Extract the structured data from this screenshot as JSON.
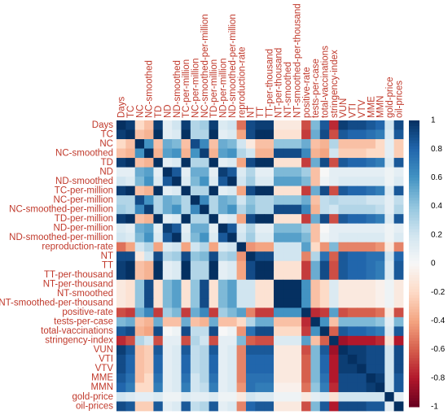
{
  "chart_data": {
    "type": "heatmap",
    "title": "",
    "variables": [
      "Days",
      "TC",
      "NC",
      "NC-smoothed",
      "TD",
      "ND",
      "ND-smoothed",
      "TC-per-million",
      "NC-per-million",
      "NC-smoothed-per-million",
      "TD-per-million",
      "ND-per-million",
      "ND-smoothed-per-million",
      "reproduction-rate",
      "NT",
      "TT",
      "TT-per-thousand",
      "NT-per-thousand",
      "NT-smoothed",
      "NT-smoothed-per-thousand",
      "positive-rate",
      "tests-per-case",
      "total-vaccinations",
      "stringency-index",
      "VUN",
      "VTI",
      "VTV",
      "MME",
      "MMN",
      "gold-price",
      "oil-prices"
    ],
    "matrix": [
      [
        1,
        0.95,
        -0.2,
        -0.3,
        0.95,
        0.1,
        0.2,
        0.95,
        0.3,
        0.35,
        0.95,
        0.15,
        0.2,
        -0.55,
        0.9,
        0.95,
        0.95,
        -0.1,
        -0.1,
        -0.1,
        -0.65,
        0.45,
        0.85,
        -0.75,
        0.95,
        0.9,
        0.9,
        0.85,
        0.8,
        0.2,
        0.9
      ],
      [
        0.95,
        1,
        -0.3,
        -0.35,
        1,
        0.1,
        0.15,
        1,
        0.3,
        0.3,
        1,
        0.1,
        0.15,
        -0.4,
        0.9,
        1,
        1,
        -0.15,
        -0.15,
        -0.15,
        -0.7,
        0.5,
        0.9,
        -0.65,
        0.85,
        0.8,
        0.8,
        0.75,
        0.7,
        0.15,
        0.85
      ],
      [
        -0.2,
        -0.3,
        1,
        0.6,
        -0.3,
        0.5,
        0.45,
        -0.3,
        0.9,
        0.65,
        -0.3,
        0.5,
        0.45,
        0.2,
        -0.1,
        -0.3,
        -0.3,
        0.4,
        0.4,
        0.4,
        0.5,
        -0.3,
        -0.35,
        0.3,
        -0.3,
        -0.3,
        -0.3,
        -0.3,
        -0.2,
        0.1,
        -0.25
      ],
      [
        -0.3,
        -0.35,
        0.6,
        1,
        -0.35,
        0.55,
        0.6,
        -0.35,
        0.6,
        0.95,
        -0.35,
        0.55,
        0.6,
        0.3,
        0.2,
        -0.35,
        -0.35,
        0.9,
        0.9,
        0.9,
        0.65,
        -0.35,
        -0.4,
        0.2,
        -0.25,
        -0.25,
        -0.25,
        -0.2,
        -0.2,
        0.1,
        -0.25
      ],
      [
        0.95,
        1,
        -0.3,
        -0.35,
        1,
        0.1,
        0.15,
        1,
        0.3,
        0.3,
        1,
        0.1,
        0.15,
        -0.4,
        0.9,
        1,
        1,
        -0.15,
        -0.15,
        -0.15,
        -0.7,
        0.5,
        0.9,
        -0.65,
        0.85,
        0.8,
        0.8,
        0.75,
        0.7,
        0.15,
        0.85
      ],
      [
        0.1,
        0.1,
        0.5,
        0.55,
        0.1,
        1,
        0.85,
        0.1,
        0.5,
        0.5,
        0.1,
        0.95,
        0.85,
        0.15,
        0.3,
        0.1,
        0.1,
        0.45,
        0.45,
        0.45,
        0.35,
        -0.3,
        0.0,
        0.1,
        0.1,
        0.1,
        0.1,
        0.1,
        0.1,
        0.05,
        0.1
      ],
      [
        0.2,
        0.15,
        0.45,
        0.6,
        0.15,
        0.85,
        1,
        0.15,
        0.45,
        0.6,
        0.15,
        0.85,
        1,
        0.2,
        0.35,
        0.15,
        0.15,
        0.55,
        0.55,
        0.55,
        0.45,
        -0.3,
        0.05,
        0.1,
        0.15,
        0.15,
        0.15,
        0.15,
        0.15,
        0.05,
        0.15
      ],
      [
        0.95,
        1,
        -0.3,
        -0.35,
        1,
        0.1,
        0.15,
        1,
        0.3,
        0.3,
        1,
        0.1,
        0.15,
        -0.4,
        0.9,
        1,
        1,
        -0.15,
        -0.15,
        -0.15,
        -0.7,
        0.5,
        0.9,
        -0.65,
        0.85,
        0.8,
        0.8,
        0.75,
        0.7,
        0.15,
        0.85
      ],
      [
        0.3,
        0.3,
        0.9,
        0.6,
        0.3,
        0.5,
        0.45,
        0.3,
        1,
        0.65,
        0.3,
        0.5,
        0.45,
        0.2,
        0.4,
        0.3,
        0.3,
        0.4,
        0.4,
        0.4,
        0.5,
        -0.3,
        0.25,
        0.3,
        0.25,
        0.25,
        0.25,
        0.2,
        0.2,
        0.1,
        0.25
      ],
      [
        0.35,
        0.3,
        0.65,
        0.95,
        0.3,
        0.5,
        0.6,
        0.3,
        0.65,
        1,
        0.3,
        0.5,
        0.6,
        0.3,
        0.45,
        0.3,
        0.3,
        0.9,
        0.9,
        0.9,
        0.65,
        -0.35,
        0.25,
        0.2,
        0.3,
        0.3,
        0.3,
        0.3,
        0.25,
        0.1,
        0.3
      ],
      [
        0.95,
        1,
        -0.3,
        -0.35,
        1,
        0.1,
        0.15,
        1,
        0.3,
        0.3,
        1,
        0.1,
        0.15,
        -0.4,
        0.9,
        1,
        1,
        -0.15,
        -0.15,
        -0.15,
        -0.7,
        0.5,
        0.9,
        -0.65,
        0.85,
        0.8,
        0.8,
        0.75,
        0.7,
        0.15,
        0.85
      ],
      [
        0.15,
        0.1,
        0.5,
        0.55,
        0.1,
        0.95,
        0.85,
        0.1,
        0.5,
        0.5,
        0.1,
        1,
        0.85,
        0.15,
        0.3,
        0.1,
        0.1,
        0.45,
        0.45,
        0.45,
        0.35,
        -0.3,
        0.0,
        0.1,
        0.1,
        0.1,
        0.1,
        0.1,
        0.1,
        0.05,
        0.1
      ],
      [
        0.2,
        0.15,
        0.45,
        0.6,
        0.15,
        0.85,
        1,
        0.15,
        0.45,
        0.6,
        0.15,
        0.85,
        1,
        0.2,
        0.35,
        0.15,
        0.15,
        0.55,
        0.55,
        0.55,
        0.45,
        -0.3,
        0.05,
        0.1,
        0.15,
        0.15,
        0.15,
        0.15,
        0.15,
        0.05,
        0.15
      ],
      [
        -0.55,
        -0.4,
        0.2,
        0.3,
        -0.4,
        0.15,
        0.2,
        -0.4,
        0.2,
        0.3,
        -0.4,
        0.15,
        0.2,
        1,
        -0.45,
        -0.4,
        -0.4,
        0.2,
        0.2,
        0.2,
        0.55,
        -0.2,
        -0.45,
        0.45,
        -0.5,
        -0.5,
        -0.5,
        -0.5,
        -0.45,
        -0.1,
        -0.5
      ],
      [
        0.9,
        0.9,
        -0.1,
        0.2,
        0.9,
        0.3,
        0.35,
        0.9,
        0.4,
        0.45,
        0.9,
        0.3,
        0.35,
        -0.45,
        1,
        0.9,
        0.9,
        0.2,
        0.2,
        0.2,
        -0.5,
        0.3,
        0.75,
        -0.6,
        0.85,
        0.8,
        0.8,
        0.75,
        0.75,
        0.2,
        0.8
      ],
      [
        0.95,
        1,
        -0.3,
        -0.35,
        1,
        0.1,
        0.15,
        1,
        0.3,
        0.3,
        1,
        0.1,
        0.15,
        -0.4,
        0.9,
        1,
        1,
        -0.15,
        -0.15,
        -0.15,
        -0.7,
        0.5,
        0.9,
        -0.65,
        0.85,
        0.8,
        0.8,
        0.75,
        0.7,
        0.15,
        0.85
      ],
      [
        0.95,
        1,
        -0.3,
        -0.35,
        1,
        0.1,
        0.15,
        1,
        0.3,
        0.3,
        1,
        0.1,
        0.15,
        -0.4,
        0.9,
        1,
        1,
        -0.15,
        -0.15,
        -0.15,
        -0.7,
        0.5,
        0.9,
        -0.65,
        0.85,
        0.8,
        0.8,
        0.75,
        0.7,
        0.15,
        0.85
      ],
      [
        -0.1,
        -0.15,
        0.4,
        0.9,
        -0.15,
        0.45,
        0.55,
        -0.15,
        0.4,
        0.9,
        -0.15,
        0.45,
        0.55,
        0.2,
        0.2,
        -0.15,
        -0.15,
        1,
        1,
        1,
        0.6,
        -0.3,
        -0.2,
        0.15,
        -0.1,
        -0.1,
        -0.1,
        -0.1,
        -0.05,
        0.05,
        -0.1
      ],
      [
        -0.1,
        -0.15,
        0.4,
        0.9,
        -0.15,
        0.45,
        0.55,
        -0.15,
        0.4,
        0.9,
        -0.15,
        0.45,
        0.55,
        0.2,
        0.2,
        -0.15,
        -0.15,
        1,
        1,
        1,
        0.6,
        -0.3,
        -0.2,
        0.15,
        -0.1,
        -0.1,
        -0.1,
        -0.1,
        -0.05,
        0.05,
        -0.1
      ],
      [
        -0.1,
        -0.15,
        0.4,
        0.9,
        -0.15,
        0.45,
        0.55,
        -0.15,
        0.4,
        0.9,
        -0.15,
        0.45,
        0.55,
        0.2,
        0.2,
        -0.15,
        -0.15,
        1,
        1,
        1,
        0.6,
        -0.3,
        -0.2,
        0.15,
        -0.1,
        -0.1,
        -0.1,
        -0.1,
        -0.05,
        0.05,
        -0.1
      ],
      [
        -0.65,
        -0.7,
        0.5,
        0.65,
        -0.7,
        0.35,
        0.45,
        -0.7,
        0.5,
        0.65,
        -0.7,
        0.35,
        0.45,
        0.55,
        -0.5,
        -0.7,
        -0.7,
        0.6,
        0.6,
        0.6,
        1,
        -0.75,
        -0.7,
        0.55,
        -0.65,
        -0.6,
        -0.6,
        -0.6,
        -0.55,
        -0.1,
        -0.65
      ],
      [
        0.45,
        0.5,
        -0.3,
        -0.35,
        0.5,
        -0.3,
        -0.3,
        0.5,
        -0.3,
        -0.35,
        0.5,
        -0.3,
        -0.3,
        -0.2,
        0.3,
        0.5,
        0.5,
        -0.3,
        -0.3,
        -0.3,
        -0.75,
        1,
        0.6,
        -0.3,
        0.45,
        0.45,
        0.45,
        0.45,
        0.4,
        0.1,
        0.45
      ],
      [
        0.85,
        0.9,
        -0.35,
        -0.4,
        0.9,
        0.0,
        0.05,
        0.9,
        0.25,
        0.25,
        0.9,
        0.0,
        0.05,
        -0.45,
        0.75,
        0.9,
        0.9,
        -0.2,
        -0.2,
        -0.2,
        -0.7,
        0.6,
        1,
        -0.6,
        0.85,
        0.8,
        0.8,
        0.75,
        0.7,
        0.15,
        0.85
      ],
      [
        -0.75,
        -0.65,
        0.3,
        0.2,
        -0.65,
        0.1,
        0.1,
        -0.65,
        0.3,
        0.2,
        -0.65,
        0.1,
        0.1,
        0.45,
        -0.6,
        -0.65,
        -0.65,
        0.15,
        0.15,
        0.15,
        0.55,
        -0.3,
        -0.6,
        1,
        -0.85,
        -0.8,
        -0.8,
        -0.8,
        -0.75,
        -0.15,
        -0.8
      ],
      [
        0.95,
        0.85,
        -0.3,
        -0.25,
        0.85,
        0.1,
        0.15,
        0.85,
        0.25,
        0.3,
        0.85,
        0.1,
        0.15,
        -0.5,
        0.85,
        0.85,
        0.85,
        -0.1,
        -0.1,
        -0.1,
        -0.65,
        0.45,
        0.85,
        -0.85,
        1,
        0.95,
        0.95,
        0.9,
        0.9,
        0.2,
        0.9
      ],
      [
        0.9,
        0.8,
        -0.3,
        -0.25,
        0.8,
        0.1,
        0.15,
        0.8,
        0.25,
        0.3,
        0.8,
        0.1,
        0.15,
        -0.5,
        0.8,
        0.8,
        0.8,
        -0.1,
        -0.1,
        -0.1,
        -0.6,
        0.45,
        0.8,
        -0.8,
        0.95,
        1,
        0.95,
        0.9,
        0.9,
        0.2,
        0.9
      ],
      [
        0.9,
        0.8,
        -0.3,
        -0.25,
        0.8,
        0.1,
        0.15,
        0.8,
        0.25,
        0.3,
        0.8,
        0.1,
        0.15,
        -0.5,
        0.8,
        0.8,
        0.8,
        -0.1,
        -0.1,
        -0.1,
        -0.6,
        0.45,
        0.8,
        -0.8,
        0.95,
        0.95,
        1,
        0.9,
        0.9,
        0.2,
        0.9
      ],
      [
        0.85,
        0.75,
        -0.3,
        -0.2,
        0.75,
        0.1,
        0.15,
        0.75,
        0.2,
        0.3,
        0.75,
        0.1,
        0.15,
        -0.5,
        0.75,
        0.75,
        0.75,
        -0.1,
        -0.1,
        -0.1,
        -0.6,
        0.45,
        0.75,
        -0.8,
        0.9,
        0.9,
        0.9,
        1,
        0.95,
        0.2,
        0.85
      ],
      [
        0.8,
        0.7,
        -0.2,
        -0.2,
        0.7,
        0.1,
        0.15,
        0.7,
        0.2,
        0.25,
        0.7,
        0.1,
        0.15,
        -0.45,
        0.75,
        0.7,
        0.7,
        -0.05,
        -0.05,
        -0.05,
        -0.55,
        0.4,
        0.7,
        -0.75,
        0.9,
        0.9,
        0.9,
        0.95,
        1,
        0.2,
        0.85
      ],
      [
        0.2,
        0.15,
        0.1,
        0.1,
        0.15,
        0.05,
        0.05,
        0.15,
        0.1,
        0.1,
        0.15,
        0.05,
        0.05,
        -0.1,
        0.2,
        0.15,
        0.15,
        0.05,
        0.05,
        0.05,
        -0.1,
        0.1,
        0.15,
        -0.15,
        0.2,
        0.2,
        0.2,
        0.2,
        0.2,
        1,
        0.1
      ],
      [
        0.9,
        0.85,
        -0.25,
        -0.25,
        0.85,
        0.1,
        0.15,
        0.85,
        0.25,
        0.3,
        0.85,
        0.1,
        0.15,
        -0.5,
        0.8,
        0.85,
        0.85,
        -0.1,
        -0.1,
        -0.1,
        -0.65,
        0.45,
        0.85,
        -0.8,
        0.9,
        0.9,
        0.9,
        0.85,
        0.85,
        0.1,
        1
      ]
    ],
    "color_scale": {
      "range": [
        -1,
        1
      ],
      "ticks": [
        1,
        0.8,
        0.6,
        0.4,
        0.2,
        0,
        -0.2,
        -0.4,
        -0.6,
        -0.8,
        -1
      ],
      "tick_labels": [
        "1",
        "0.8",
        "0.6",
        "0.4",
        "0.2",
        "0",
        "-0.2",
        "-0.4",
        "-0.6",
        "-0.8",
        "-1"
      ],
      "stops": [
        "#67001f",
        "#b2182b",
        "#d6604d",
        "#f4a582",
        "#fddbc7",
        "#f7f7f7",
        "#d1e5f0",
        "#92c5de",
        "#4393c3",
        "#2166ac",
        "#053061"
      ]
    },
    "label_color": "#c0392b",
    "legend_placement": "right"
  }
}
